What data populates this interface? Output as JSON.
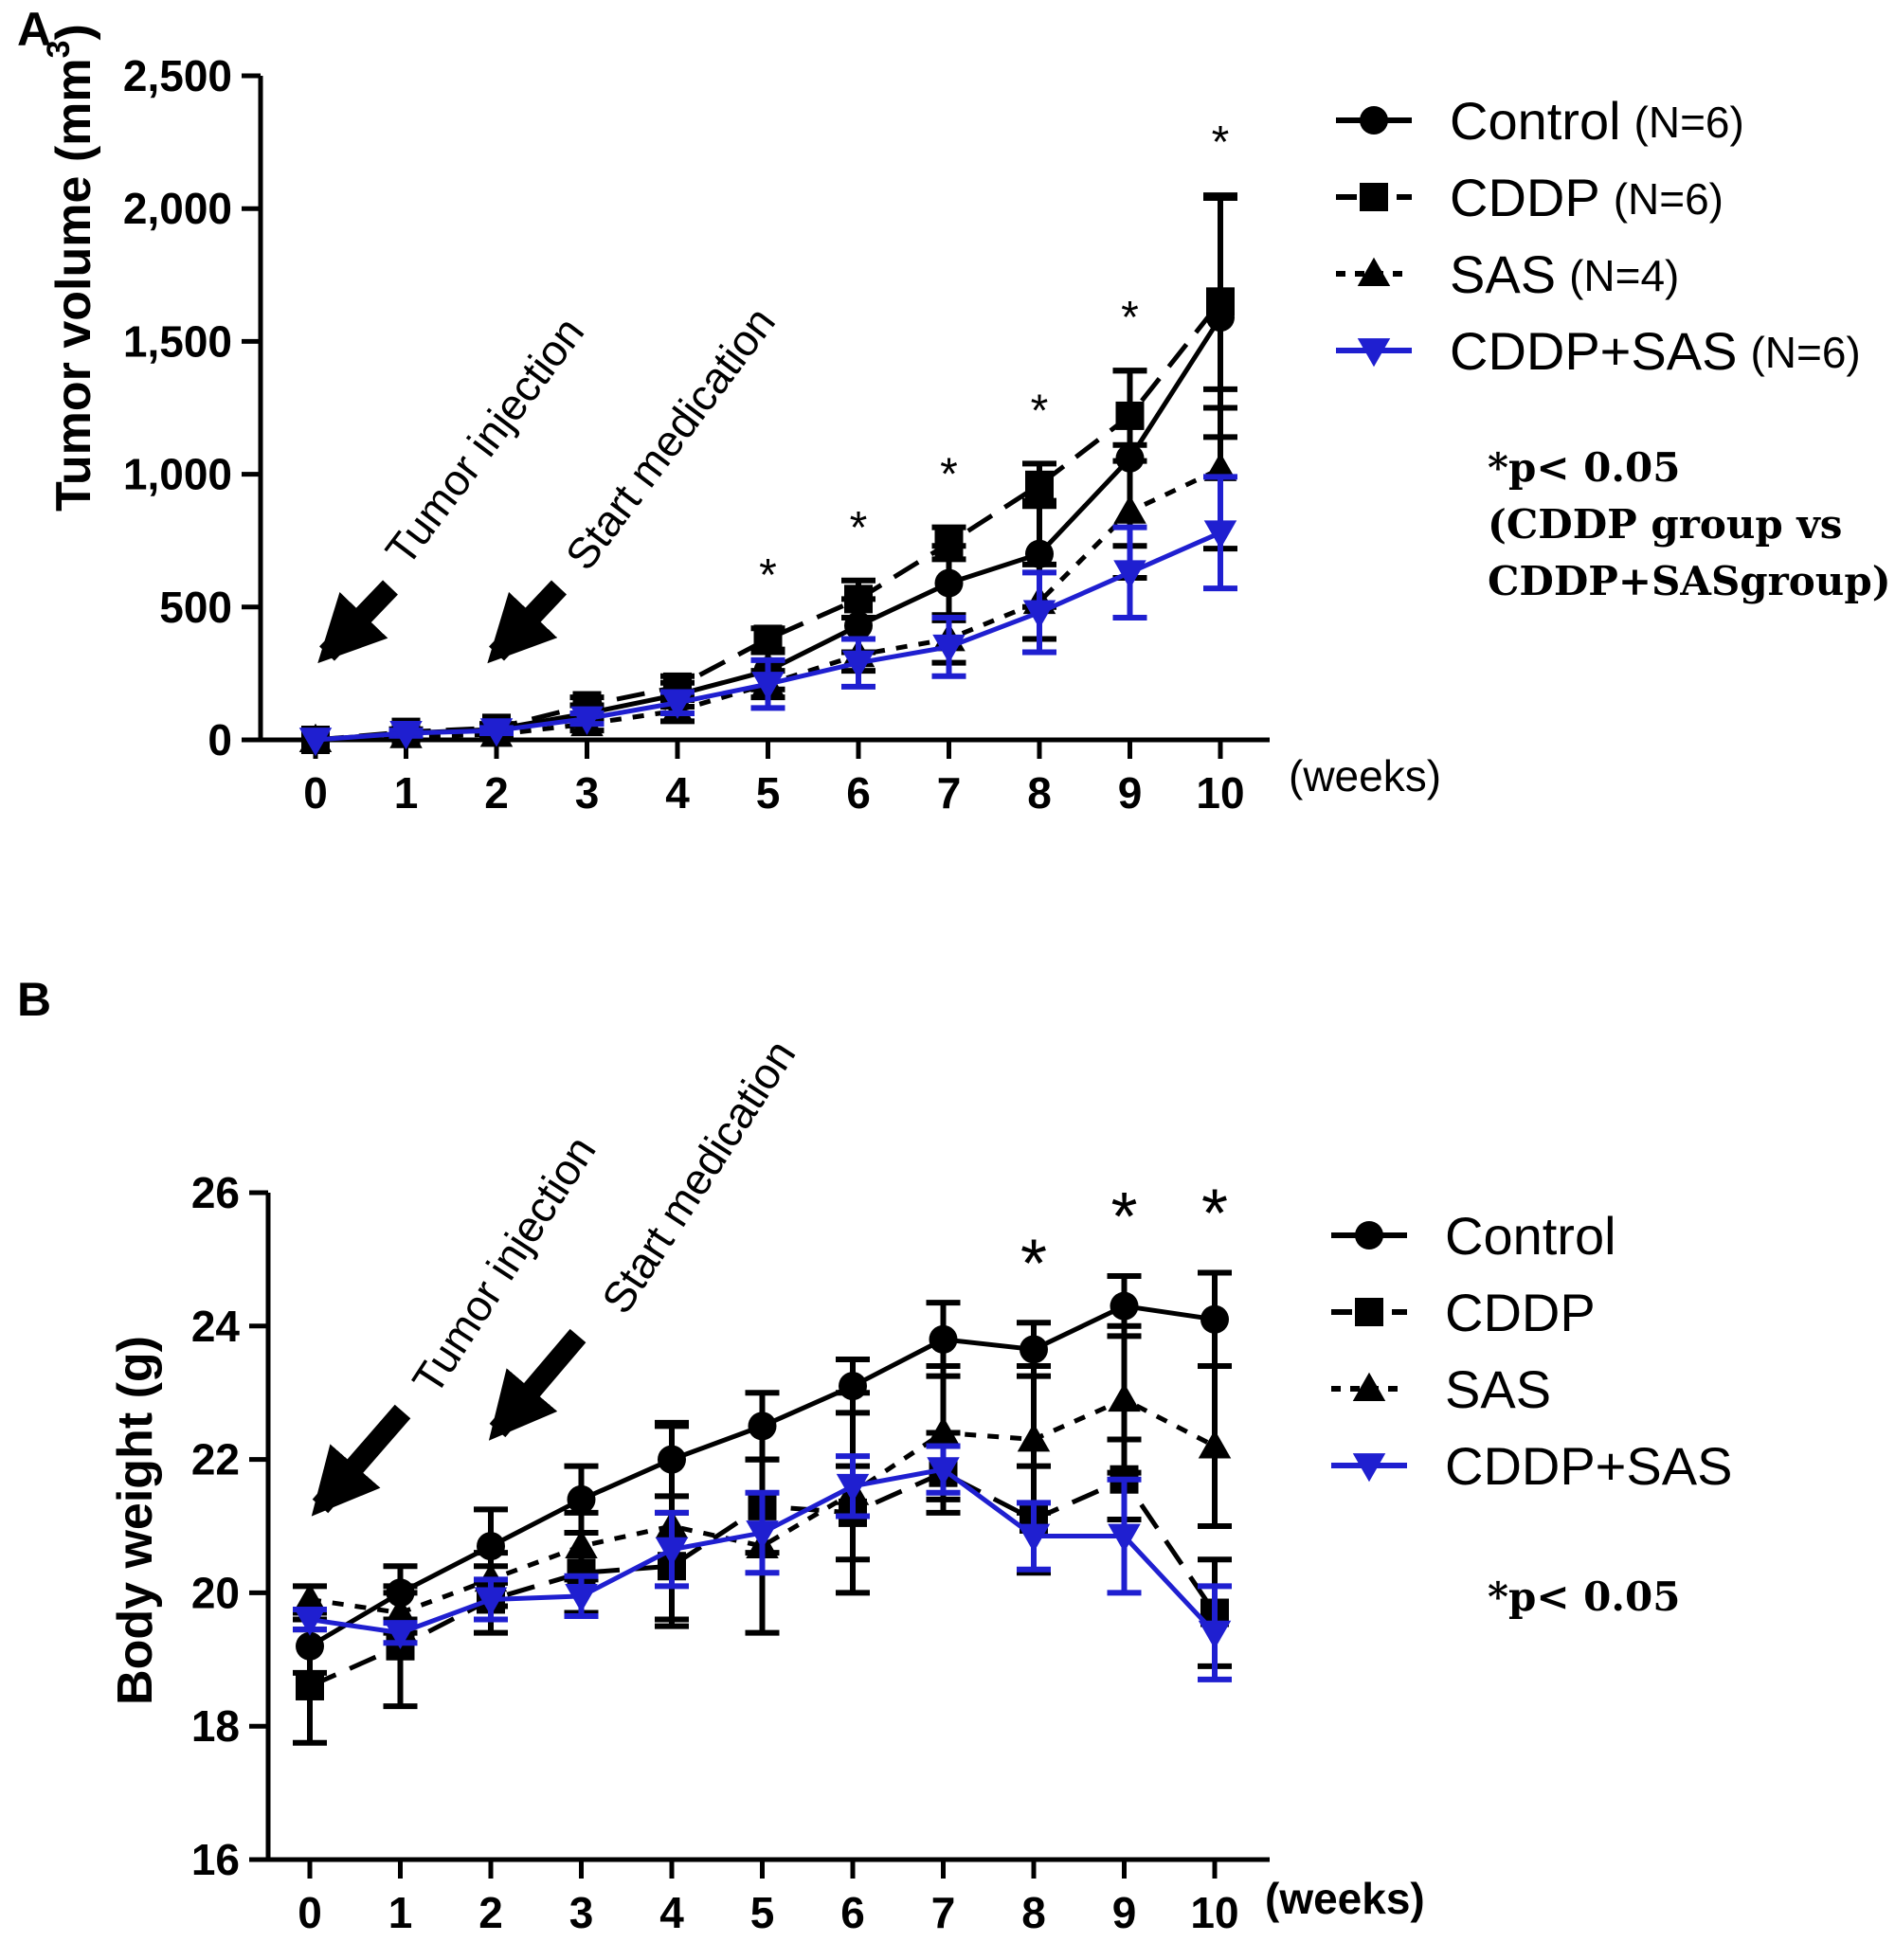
{
  "chart_data": [
    {
      "panel": "A",
      "type": "line",
      "ylabel": "Tumor volume (mm",
      "ylabel_sup": "3",
      "ylabel_close": ")",
      "x_unit": "(weeks)",
      "ylim": [
        0,
        2500
      ],
      "yticks": [
        0,
        500,
        1000,
        1500,
        2000,
        2500
      ],
      "ytick_labels": [
        "0",
        "500",
        "1,000",
        "1,500",
        "2,000",
        "2,500"
      ],
      "x": [
        0,
        1,
        2,
        3,
        4,
        5,
        6,
        7,
        8,
        9,
        10
      ],
      "xtick_labels": [
        "0",
        "1",
        "2",
        "3",
        "4",
        "5",
        "6",
        "7",
        "8",
        "9",
        "10"
      ],
      "series": [
        {
          "name": "Control",
          "n_label": "(N=6)",
          "marker": "circle",
          "dash": "solid",
          "color": "#000000",
          "values": [
            0,
            25,
            40,
            100,
            170,
            260,
            430,
            590,
            700,
            1060,
            1590
          ],
          "errors": [
            0,
            10,
            15,
            30,
            45,
            70,
            100,
            140,
            200,
            330,
            450
          ]
        },
        {
          "name": "CDDP",
          "n_label": "(N=6)",
          "marker": "square",
          "dash": "long",
          "color": "#000000",
          "values": [
            0,
            30,
            45,
            130,
            200,
            380,
            530,
            740,
            960,
            1220,
            1650
          ],
          "errors": [
            0,
            10,
            15,
            30,
            40,
            40,
            70,
            60,
            80,
            170,
            400
          ]
        },
        {
          "name": "SAS",
          "n_label": "(N=4)",
          "marker": "triangle",
          "dash": "short",
          "color": "#000000",
          "values": [
            0,
            15,
            20,
            60,
            110,
            210,
            320,
            380,
            520,
            860,
            1020
          ],
          "errors": [
            0,
            10,
            15,
            25,
            40,
            50,
            60,
            90,
            140,
            250,
            300
          ]
        },
        {
          "name": "CDDP+SAS",
          "n_label": "(N=6)",
          "marker": "triangle-down",
          "dash": "solid",
          "color": "#1f1fd0",
          "values": [
            0,
            25,
            35,
            80,
            140,
            210,
            290,
            350,
            480,
            630,
            780
          ],
          "errors": [
            0,
            10,
            10,
            20,
            40,
            90,
            90,
            110,
            150,
            170,
            210
          ]
        }
      ],
      "significance": {
        "x": [
          5,
          6,
          7,
          8,
          9,
          10
        ],
        "label": "*"
      },
      "annotations": {
        "arrow1": "Tumor injection",
        "arrow2": "Start medication"
      },
      "note_lines": [
        "*p< 0.05",
        "(CDDP group vs",
        "CDDP+SASgroup)"
      ]
    },
    {
      "panel": "B",
      "type": "line",
      "ylabel": "Body weight (g)",
      "x_unit": "(weeks)",
      "ylim": [
        16,
        26
      ],
      "yticks": [
        16,
        18,
        20,
        22,
        24,
        26
      ],
      "ytick_labels": [
        "16",
        "18",
        "20",
        "22",
        "24",
        "26"
      ],
      "x": [
        0,
        1,
        2,
        3,
        4,
        5,
        6,
        7,
        8,
        9,
        10
      ],
      "xtick_labels": [
        "0",
        "1",
        "2",
        "3",
        "4",
        "5",
        "6",
        "7",
        "8",
        "9",
        "10"
      ],
      "series": [
        {
          "name": "Control",
          "marker": "circle",
          "dash": "solid",
          "color": "#000000",
          "values": [
            19.2,
            20.0,
            20.7,
            21.4,
            22.0,
            22.5,
            23.1,
            23.8,
            23.65,
            24.3,
            24.1
          ],
          "errors": [
            0.4,
            0.4,
            0.55,
            0.5,
            0.55,
            0.5,
            0.4,
            0.55,
            0.4,
            0.45,
            0.7
          ]
        },
        {
          "name": "CDDP",
          "marker": "square",
          "dash": "long",
          "color": "#000000",
          "values": [
            18.6,
            19.2,
            19.9,
            20.3,
            20.4,
            21.3,
            21.2,
            21.8,
            21.1,
            21.7,
            19.7
          ],
          "errors": [
            0.85,
            0.9,
            0.5,
            0.6,
            0.8,
            0.7,
            0.7,
            0.6,
            0.8,
            0.6,
            0.8
          ]
        },
        {
          "name": "SAS",
          "marker": "triangle",
          "dash": "short",
          "color": "#000000",
          "values": [
            19.9,
            19.7,
            20.2,
            20.7,
            21.0,
            20.7,
            21.5,
            22.4,
            22.3,
            22.9,
            22.2
          ],
          "errors": [
            0.2,
            0.3,
            0.4,
            0.5,
            1.5,
            1.3,
            1.5,
            1.0,
            1.1,
            1.1,
            1.2
          ]
        },
        {
          "name": "CDDP+SAS",
          "marker": "triangle-down",
          "dash": "solid",
          "color": "#1f1fd0",
          "values": [
            19.6,
            19.4,
            19.9,
            19.95,
            20.65,
            20.9,
            21.6,
            21.85,
            20.85,
            20.85,
            19.4
          ],
          "errors": [
            0.15,
            0.15,
            0.3,
            0.3,
            0.55,
            0.6,
            0.45,
            0.35,
            0.5,
            0.85,
            0.7
          ]
        }
      ],
      "significance": {
        "x": [
          8,
          9,
          10
        ],
        "label": "*"
      },
      "annotations": {
        "arrow1": "Tumor injection",
        "arrow2": "Start medication"
      },
      "note_lines": [
        "*p< 0.05"
      ]
    }
  ]
}
